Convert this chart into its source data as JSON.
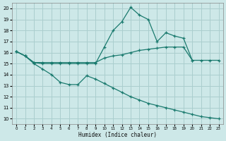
{
  "xlabel": "Humidex (Indice chaleur)",
  "bg_color": "#cde8e8",
  "grid_color": "#aacece",
  "line_color": "#1a7a6e",
  "xlim": [
    -0.5,
    23.5
  ],
  "ylim": [
    9.5,
    20.5
  ],
  "xticks": [
    0,
    1,
    2,
    3,
    4,
    5,
    6,
    7,
    8,
    9,
    10,
    11,
    12,
    13,
    14,
    15,
    16,
    17,
    18,
    19,
    20,
    21,
    22,
    23
  ],
  "yticks": [
    10,
    11,
    12,
    13,
    14,
    15,
    16,
    17,
    18,
    19,
    20
  ],
  "line_upper_x": [
    0,
    1,
    2,
    3,
    4,
    5,
    6,
    7,
    8,
    9,
    10,
    11,
    12,
    13,
    14,
    15,
    16,
    17,
    18,
    19,
    20
  ],
  "line_upper_y": [
    16.1,
    15.7,
    15.1,
    15.0,
    15.0,
    15.0,
    15.0,
    15.0,
    15.0,
    15.0,
    16.5,
    18.0,
    18.8,
    20.1,
    19.4,
    19.0,
    17.0,
    17.8,
    17.5,
    17.3,
    15.3
  ],
  "line_mid_x": [
    0,
    1,
    2,
    3,
    4,
    5,
    6,
    7,
    8,
    9,
    10,
    11,
    12,
    13,
    14,
    15,
    16,
    17,
    18,
    19,
    20,
    21,
    22,
    23
  ],
  "line_mid_y": [
    16.1,
    15.7,
    15.1,
    15.1,
    15.1,
    15.1,
    15.1,
    15.1,
    15.1,
    15.1,
    15.5,
    15.7,
    15.8,
    16.0,
    16.2,
    16.3,
    16.4,
    16.5,
    16.5,
    16.5,
    15.3,
    15.3,
    15.3,
    15.3
  ],
  "line_lower_x": [
    0,
    1,
    2,
    3,
    4,
    5,
    6,
    7,
    8,
    9,
    10,
    11,
    12,
    13,
    14,
    15,
    16,
    17,
    18,
    19,
    20,
    21,
    22,
    23
  ],
  "line_lower_y": [
    16.1,
    15.7,
    15.0,
    14.5,
    14.0,
    13.3,
    13.1,
    13.1,
    13.9,
    13.6,
    13.2,
    12.8,
    12.4,
    12.0,
    11.7,
    11.4,
    11.2,
    11.0,
    10.8,
    10.6,
    10.4,
    10.2,
    10.1,
    10.0
  ]
}
